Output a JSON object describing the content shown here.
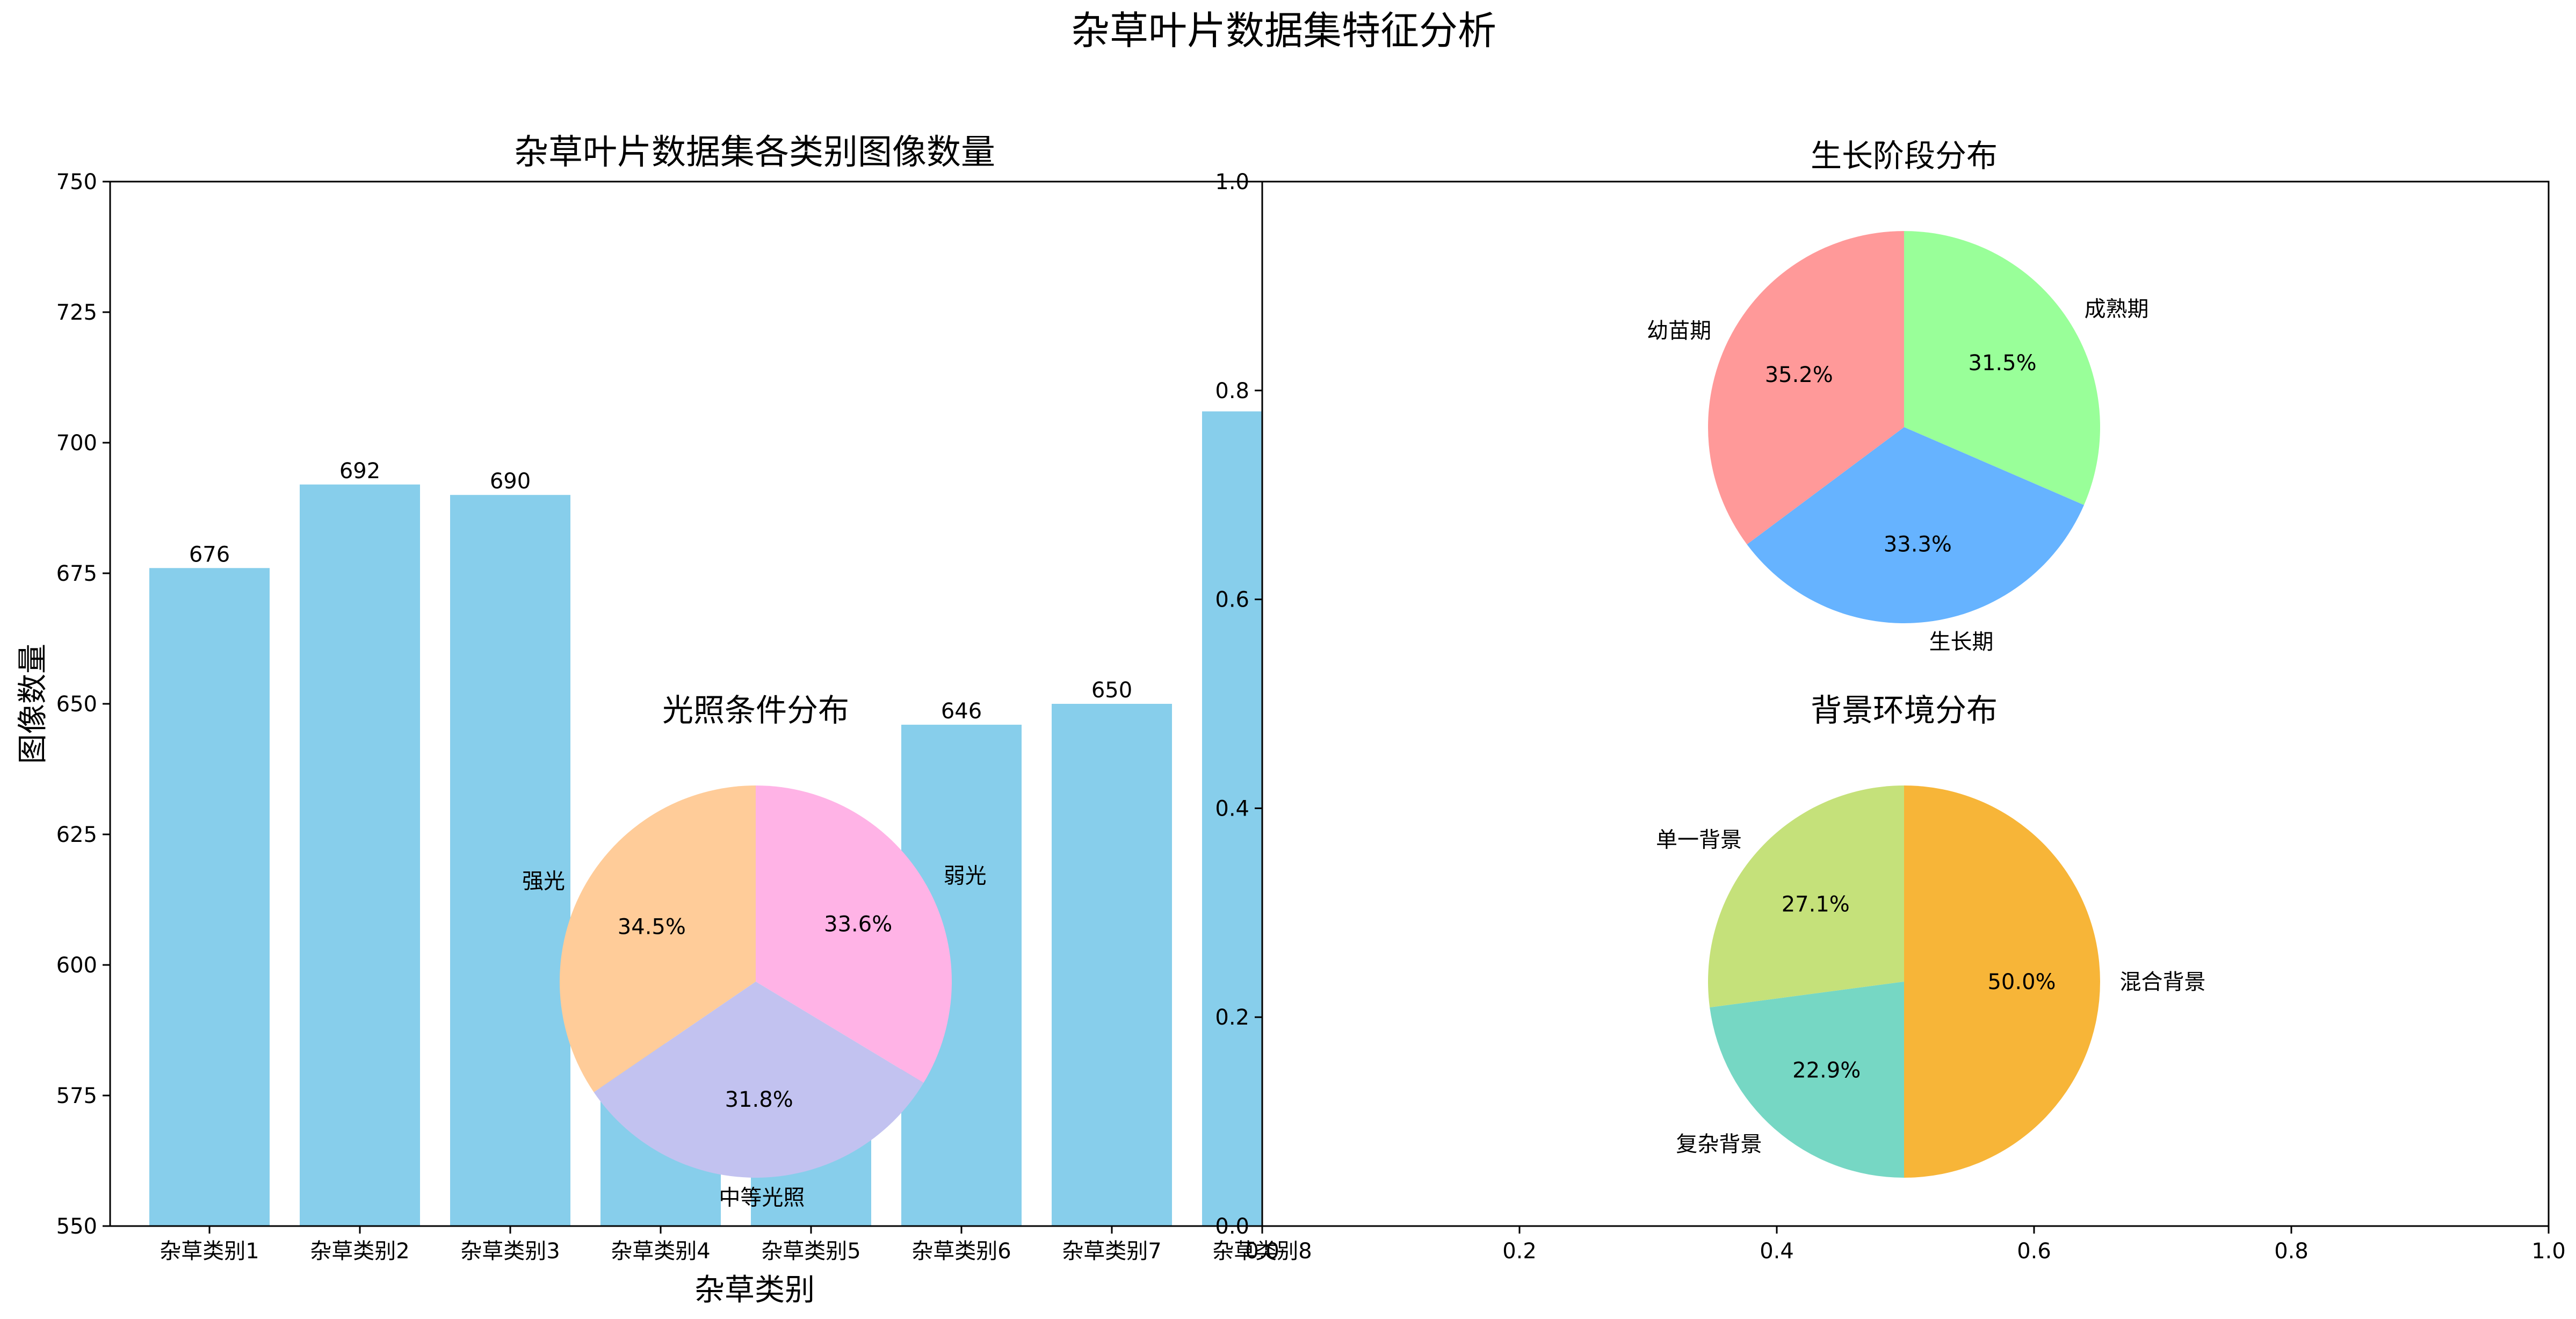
{
  "figure": {
    "title": "杂草叶片数据集特征分析"
  },
  "chart_data": [
    {
      "type": "bar",
      "title": "杂草叶片数据集各类别图像数量",
      "xlabel": "杂草类别",
      "ylabel": "图像数量",
      "categories": [
        "杂草类别1",
        "杂草类别2",
        "杂草类别3",
        "杂草类别4",
        "杂草类别5",
        "杂草类别6",
        "杂草类别7",
        "杂草类别8"
      ],
      "values": [
        676,
        692,
        690,
        585,
        570,
        646,
        650,
        706
      ],
      "labels_shown": [
        "676",
        "692",
        "690",
        "",
        "",
        "646",
        "650",
        ""
      ],
      "ylim": [
        550,
        750
      ],
      "yticks": [
        550,
        575,
        600,
        625,
        650,
        675,
        700,
        725,
        750
      ],
      "bar_color": "#87CEEB",
      "grid": false
    },
    {
      "type": "pie",
      "title": "光照条件分布",
      "labels": [
        "弱光",
        "中等光照",
        "强光"
      ],
      "values": [
        33.6,
        31.8,
        34.5
      ],
      "pct_labels": [
        "33.6%",
        "31.8%",
        "34.5%"
      ],
      "colors": [
        "#FFB3E6",
        "#C2C2F0",
        "#FFCC99"
      ]
    },
    {
      "type": "pie",
      "title": "生长阶段分布",
      "labels": [
        "成熟期",
        "生长期",
        "幼苗期"
      ],
      "values": [
        31.5,
        33.3,
        35.2
      ],
      "pct_labels": [
        "31.5%",
        "33.3%",
        "35.2%"
      ],
      "colors": [
        "#99FF99",
        "#66B3FF",
        "#FF9999"
      ]
    },
    {
      "type": "pie",
      "title": "背景环境分布",
      "labels": [
        "混合背景",
        "复杂背景",
        "单一背景"
      ],
      "values": [
        50.0,
        22.9,
        27.1
      ],
      "pct_labels": [
        "50.0%",
        "22.9%",
        "27.1%"
      ],
      "colors": [
        "#F7B538",
        "#76D7C4",
        "#C5E17A"
      ]
    },
    {
      "type": "scatter",
      "note": "empty axes",
      "xlim": [
        0.0,
        1.0
      ],
      "ylim": [
        0.0,
        1.0
      ],
      "xticks": [
        "0.0",
        "0.2",
        "0.4",
        "0.6",
        "0.8",
        "1.0"
      ],
      "yticks": [
        "0.0",
        "0.2",
        "0.4",
        "0.6",
        "0.8",
        "1.0"
      ]
    }
  ]
}
